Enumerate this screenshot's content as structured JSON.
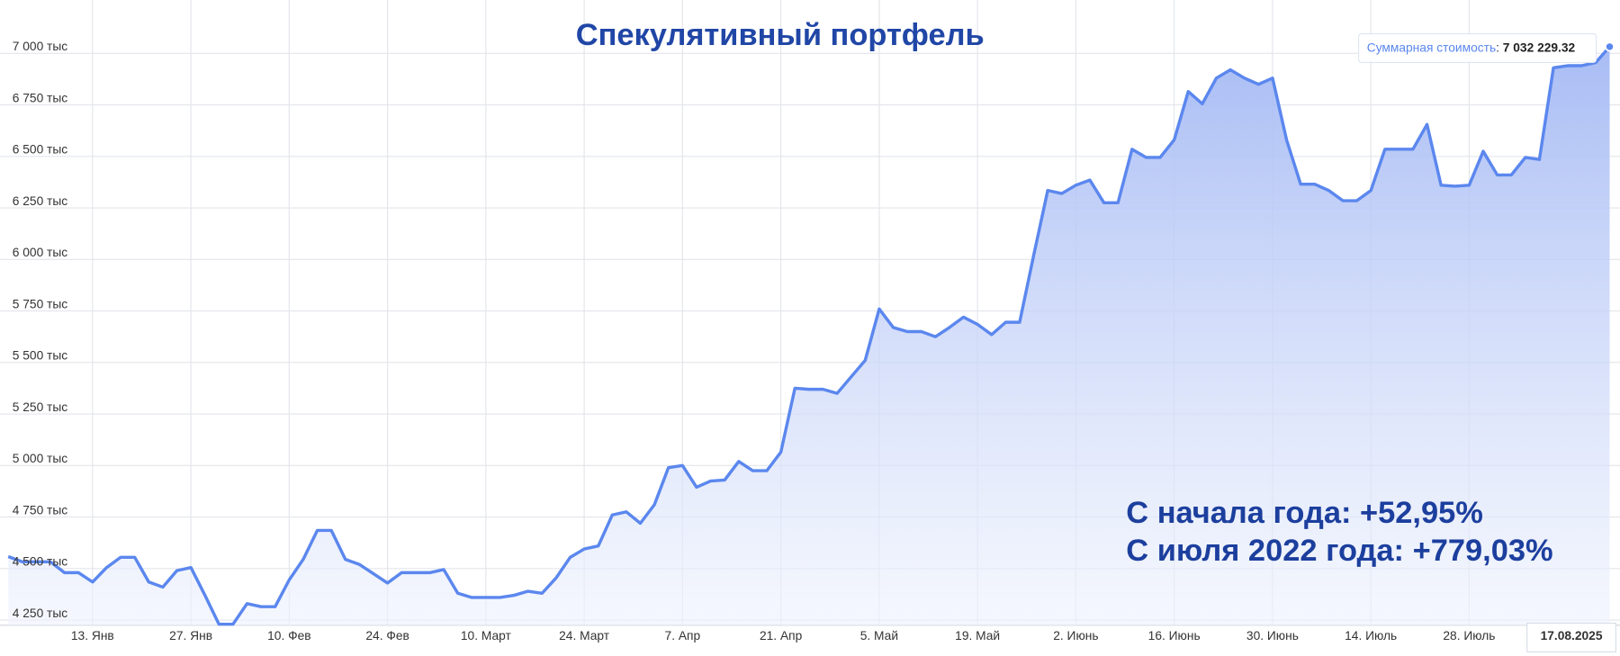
{
  "chart_data": {
    "type": "area",
    "title": "Спекулятивный портфель",
    "annotations": [
      "С начала года: +52,95%",
      "С июля 2022 года: +779,03%"
    ],
    "tooltip": {
      "label": "Суммарная стоимость",
      "value": "7 032 229.32"
    },
    "color": "#5b87ee",
    "grid": true,
    "categories": [
      null,
      null,
      null,
      null,
      null,
      null,
      "13. Янв",
      null,
      null,
      null,
      null,
      null,
      null,
      "27. Янв",
      null,
      null,
      null,
      null,
      null,
      null,
      "10. Фев",
      null,
      null,
      null,
      null,
      null,
      null,
      "24. Фев",
      null,
      null,
      null,
      null,
      null,
      null,
      "10. Март",
      null,
      null,
      null,
      null,
      null,
      null,
      "24. Март",
      null,
      null,
      null,
      null,
      null,
      null,
      "7. Апр",
      null,
      null,
      null,
      null,
      null,
      null,
      "21. Апр",
      null,
      null,
      null,
      null,
      null,
      null,
      "5. Май",
      null,
      null,
      null,
      null,
      null,
      null,
      "19. Май",
      null,
      null,
      null,
      null,
      null,
      null,
      "2. Июнь",
      null,
      null,
      null,
      null,
      null,
      null,
      "16. Июнь",
      null,
      null,
      null,
      null,
      null,
      null,
      "30. Июнь",
      null,
      null,
      null,
      null,
      null,
      null,
      "14. Июль",
      null,
      null,
      null,
      null,
      null,
      null,
      "28. Июль",
      null,
      null,
      null,
      null,
      null,
      null,
      null,
      null,
      null,
      "17.08.2025"
    ],
    "values": [
      4558,
      4533,
      4533,
      4533,
      4480,
      4480,
      4435,
      4505,
      4555,
      4555,
      4435,
      4410,
      4490,
      4505,
      4370,
      4230,
      4230,
      4330,
      4315,
      4315,
      4445,
      4545,
      4685,
      4685,
      4545,
      4520,
      4475,
      4430,
      4480,
      4480,
      4480,
      4495,
      4380,
      4360,
      4360,
      4360,
      4370,
      4390,
      4380,
      4455,
      4555,
      4595,
      4610,
      4760,
      4775,
      4720,
      4810,
      4990,
      5000,
      4895,
      4925,
      4930,
      5020,
      4975,
      4975,
      5065,
      5375,
      5370,
      5370,
      5350,
      5430,
      5510,
      5760,
      5670,
      5650,
      5650,
      5625,
      5670,
      5720,
      5685,
      5635,
      5695,
      5695,
      6020,
      6335,
      6320,
      6360,
      6385,
      6275,
      6275,
      6535,
      6495,
      6495,
      6580,
      6815,
      6755,
      6880,
      6920,
      6880,
      6850,
      6880,
      6580,
      6365,
      6365,
      6335,
      6285,
      6285,
      6335,
      6535,
      6535,
      6535,
      6655,
      6360,
      6355,
      6360,
      6525,
      6410,
      6410,
      6495,
      6485,
      6930,
      6940,
      6940,
      6955,
      7032.22932
    ],
    "ylim": [
      4225,
      7244
    ],
    "yticks": [
      {
        "value": 4250,
        "label": "4 250 тыс"
      },
      {
        "value": 4500,
        "label": "4 500 тыс"
      },
      {
        "value": 4750,
        "label": "4 750 тыс"
      },
      {
        "value": 5000,
        "label": "5 000 тыс"
      },
      {
        "value": 5250,
        "label": "5 250 тыс"
      },
      {
        "value": 5500,
        "label": "5 500 тыс"
      },
      {
        "value": 5750,
        "label": "5 750 тыс"
      },
      {
        "value": 6000,
        "label": "6 000 тыс"
      },
      {
        "value": 6250,
        "label": "6 250 тыс"
      },
      {
        "value": 6500,
        "label": "6 500 тыс"
      },
      {
        "value": 6750,
        "label": "6 750 тыс"
      },
      {
        "value": 7000,
        "label": "7 000 тыс"
      }
    ]
  }
}
